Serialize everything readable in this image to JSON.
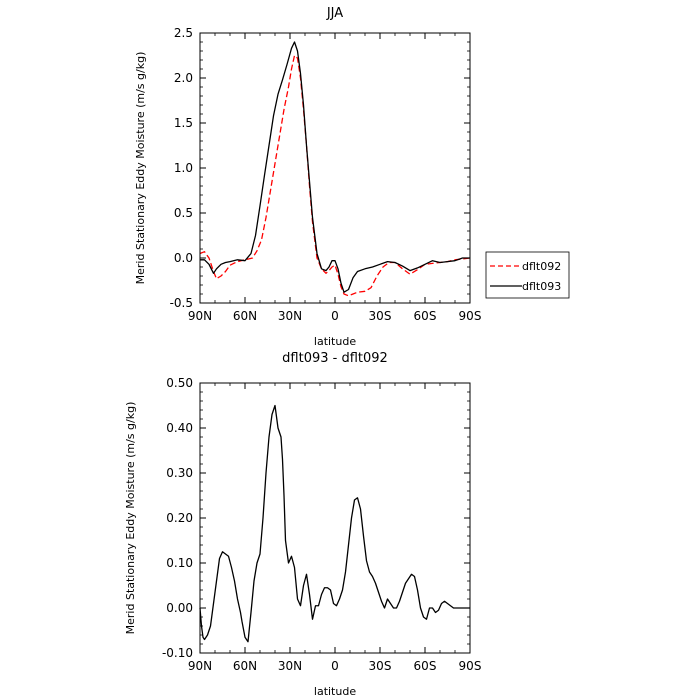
{
  "chart_data": [
    {
      "type": "line",
      "title": "JJA",
      "xlabel": "latitude",
      "ylabel": "Merid Stationary Eddy Moisture (m/s g/kg)",
      "xlim": [
        -90,
        90
      ],
      "ylim": [
        -0.5,
        2.5
      ],
      "x_ticks": [
        -90,
        -60,
        -30,
        0,
        30,
        60,
        90
      ],
      "x_tick_labels": [
        "90N",
        "60N",
        "30N",
        "0",
        "30S",
        "60S",
        "90S"
      ],
      "y_ticks": [
        -0.5,
        0,
        0.5,
        1,
        1.5,
        2,
        2.5
      ],
      "y_tick_labels": [
        "-0.5",
        "0.0",
        "0.5",
        "1.0",
        "1.5",
        "2.0",
        "2.5"
      ],
      "legend": "outside-right",
      "series": [
        {
          "name": "dflt092",
          "color": "#ff0000",
          "style": "dashed",
          "x": [
            -90,
            -87,
            -84,
            -81,
            -79,
            -76,
            -73,
            -70,
            -65,
            -60,
            -55,
            -52,
            -49,
            -46,
            -43,
            -40,
            -37,
            -34,
            -31,
            -29,
            -27,
            -25,
            -23,
            -21,
            -19,
            -17,
            -15,
            -12,
            -9,
            -6,
            -4,
            -2,
            0,
            2,
            4,
            6,
            9,
            12,
            15,
            20,
            24,
            28,
            32,
            36,
            40,
            45,
            50,
            55,
            60,
            65,
            70,
            75,
            80,
            85,
            90
          ],
          "y": [
            0.05,
            0.07,
            0.0,
            -0.15,
            -0.23,
            -0.2,
            -0.15,
            -0.08,
            -0.04,
            -0.02,
            0.0,
            0.08,
            0.2,
            0.45,
            0.75,
            1.05,
            1.35,
            1.65,
            1.9,
            2.1,
            2.25,
            2.22,
            2.0,
            1.65,
            1.25,
            0.8,
            0.4,
            0.0,
            -0.12,
            -0.17,
            -0.14,
            -0.1,
            -0.08,
            -0.18,
            -0.32,
            -0.4,
            -0.42,
            -0.4,
            -0.38,
            -0.37,
            -0.33,
            -0.2,
            -0.1,
            -0.05,
            -0.05,
            -0.12,
            -0.18,
            -0.13,
            -0.07,
            -0.06,
            -0.05,
            -0.04,
            -0.02,
            -0.01,
            0.0
          ]
        },
        {
          "name": "dflt093",
          "color": "#000000",
          "style": "solid",
          "x": [
            -90,
            -87,
            -84,
            -81,
            -79,
            -76,
            -73,
            -70,
            -65,
            -60,
            -56,
            -53,
            -50,
            -47,
            -44,
            -41,
            -38,
            -35,
            -32,
            -29,
            -27,
            -25,
            -23,
            -21,
            -19,
            -17,
            -15,
            -12,
            -9,
            -6,
            -4,
            -2,
            0,
            2,
            4,
            6,
            9,
            12,
            15,
            20,
            25,
            30,
            35,
            40,
            45,
            50,
            55,
            60,
            65,
            70,
            75,
            80,
            85,
            90
          ],
          "y": [
            -0.02,
            -0.02,
            -0.07,
            -0.17,
            -0.12,
            -0.07,
            -0.05,
            -0.04,
            -0.02,
            -0.03,
            0.05,
            0.25,
            0.58,
            0.92,
            1.25,
            1.58,
            1.82,
            1.98,
            2.15,
            2.33,
            2.4,
            2.3,
            2.05,
            1.7,
            1.25,
            0.85,
            0.45,
            0.05,
            -0.12,
            -0.14,
            -0.1,
            -0.03,
            -0.03,
            -0.12,
            -0.28,
            -0.38,
            -0.35,
            -0.22,
            -0.15,
            -0.12,
            -0.1,
            -0.07,
            -0.04,
            -0.05,
            -0.09,
            -0.14,
            -0.11,
            -0.07,
            -0.03,
            -0.05,
            -0.04,
            -0.03,
            0.0,
            0.0
          ]
        }
      ]
    },
    {
      "type": "line",
      "title": "dflt093 - dflt092",
      "xlabel": "latitude",
      "ylabel": "Merid Stationary Eddy Moisture (m/s g/kg)",
      "xlim": [
        -90,
        90
      ],
      "ylim": [
        -0.1,
        0.5
      ],
      "x_ticks": [
        -90,
        -60,
        -30,
        0,
        30,
        60,
        90
      ],
      "x_tick_labels": [
        "90N",
        "60N",
        "30N",
        "0",
        "30S",
        "60S",
        "90S"
      ],
      "y_ticks": [
        -0.1,
        0,
        0.1,
        0.2,
        0.3,
        0.4,
        0.5
      ],
      "y_tick_labels": [
        "-0.10",
        "0.00",
        "0.10",
        "0.20",
        "0.30",
        "0.40",
        "0.50"
      ],
      "series": [
        {
          "color": "#000000",
          "style": "solid",
          "x": [
            -90,
            -89,
            -88,
            -87,
            -85,
            -83,
            -81,
            -79,
            -77,
            -75,
            -73,
            -71,
            -69,
            -67,
            -65,
            -63,
            -62,
            -60,
            -58,
            -56,
            -54,
            -52,
            -50,
            -48,
            -46,
            -44,
            -42,
            -40,
            -38,
            -36,
            -35,
            -34,
            -33,
            -31,
            -29,
            -27,
            -25,
            -23,
            -21,
            -19,
            -17,
            -15,
            -13,
            -11,
            -9,
            -7,
            -5,
            -3,
            -1,
            1,
            3,
            5,
            7,
            9,
            11,
            13,
            15,
            17,
            19,
            21,
            23,
            25,
            27,
            29,
            31,
            33,
            35,
            37,
            39,
            41,
            43,
            45,
            47,
            49,
            51,
            53,
            55,
            57,
            59,
            61,
            63,
            65,
            67,
            69,
            71,
            73,
            75,
            77,
            79,
            81,
            83,
            85,
            87,
            89,
            90
          ],
          "y": [
            0.0,
            -0.04,
            -0.065,
            -0.07,
            -0.06,
            -0.04,
            0.01,
            0.06,
            0.11,
            0.125,
            0.12,
            0.115,
            0.09,
            0.06,
            0.02,
            -0.01,
            -0.03,
            -0.065,
            -0.075,
            -0.01,
            0.06,
            0.1,
            0.12,
            0.2,
            0.3,
            0.38,
            0.43,
            0.45,
            0.4,
            0.38,
            0.33,
            0.25,
            0.15,
            0.1,
            0.115,
            0.09,
            0.02,
            0.005,
            0.05,
            0.075,
            0.03,
            -0.025,
            0.005,
            0.005,
            0.03,
            0.045,
            0.045,
            0.04,
            0.01,
            0.005,
            0.02,
            0.04,
            0.08,
            0.14,
            0.2,
            0.24,
            0.245,
            0.22,
            0.16,
            0.105,
            0.08,
            0.07,
            0.055,
            0.035,
            0.015,
            0.0,
            0.02,
            0.01,
            0.0,
            0.0,
            0.015,
            0.035,
            0.055,
            0.065,
            0.075,
            0.07,
            0.04,
            0.0,
            -0.02,
            -0.025,
            0.0,
            0.0,
            -0.01,
            -0.005,
            0.01,
            0.015,
            0.01,
            0.005,
            0.0,
            0.0,
            0.0,
            0.0,
            0.0,
            0.0,
            0.0
          ]
        }
      ]
    }
  ]
}
